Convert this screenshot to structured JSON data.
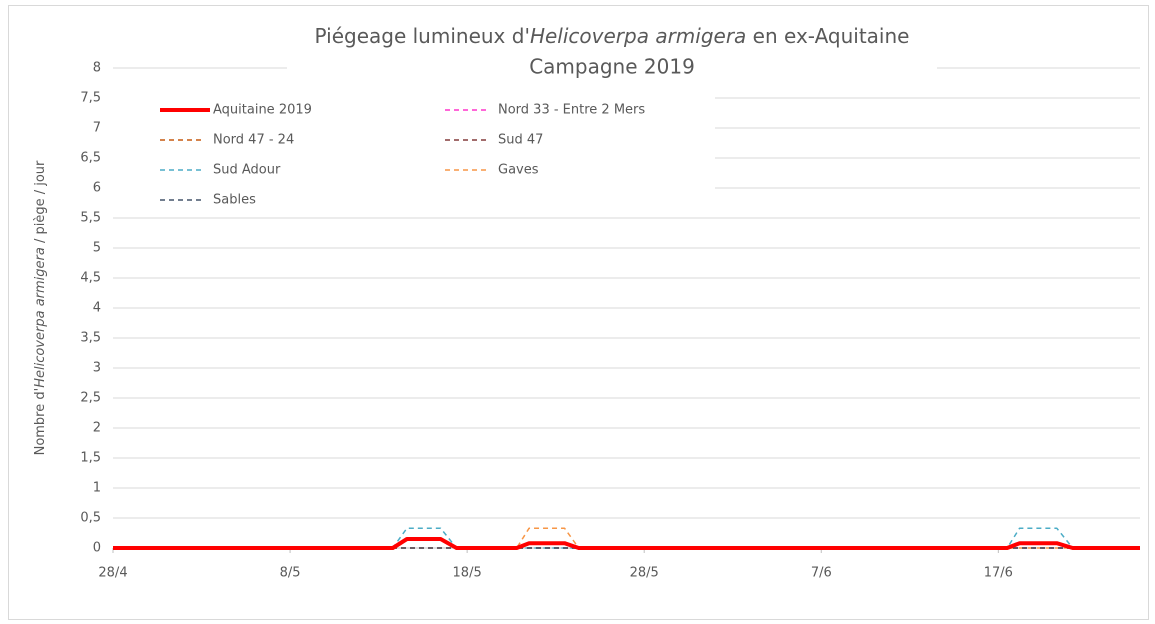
{
  "chart_data": {
    "type": "line",
    "title": [
      "Piégeage lumineux d'",
      "Helicoverpa armigera",
      " en ex-Aquitaine"
    ],
    "subtitle": "Campagne 2019",
    "y_label": [
      "Nombre d'",
      "Helicoverpa armigera",
      " / piège / jour"
    ],
    "xlim": [
      0,
      58
    ],
    "xticks": [
      {
        "value": 0,
        "label": "28/4"
      },
      {
        "value": 10,
        "label": "8/5"
      },
      {
        "value": 20,
        "label": "18/5"
      },
      {
        "value": 30,
        "label": "28/5"
      },
      {
        "value": 40,
        "label": "7/6"
      },
      {
        "value": 50,
        "label": "17/6"
      }
    ],
    "ylim": [
      0,
      8
    ],
    "yticks": [
      0,
      {
        "value": 0.5,
        "label": "0,5"
      },
      1,
      {
        "value": 1.5,
        "label": "1,5"
      },
      2,
      {
        "value": 2.5,
        "label": "2,5"
      },
      3,
      {
        "value": 3.5,
        "label": "3,5"
      },
      4,
      {
        "value": 4.5,
        "label": "4,5"
      },
      5,
      {
        "value": 5.5,
        "label": "5,5"
      },
      6,
      {
        "value": 6.5,
        "label": "6,5"
      },
      7,
      {
        "value": 7.5,
        "label": "7,5"
      },
      8
    ],
    "grid": true,
    "legend": "top-left",
    "series": [
      {
        "name": "Aquitaine 2019",
        "color": "#ff0000",
        "style": "solid",
        "x": [
          0,
          15.8,
          16.6,
          18.5,
          19.4,
          22.8,
          23.5,
          25.5,
          26.3,
          50.5,
          51.2,
          53.3,
          54.2,
          58
        ],
        "values": [
          0,
          0,
          0.15,
          0.15,
          0,
          0,
          0.08,
          0.08,
          0,
          0,
          0.08,
          0.08,
          0,
          0
        ]
      },
      {
        "name": "Nord 33 - Entre 2 Mers",
        "color": "#ff33cc",
        "style": "dashed",
        "x": [
          0,
          58
        ],
        "values": [
          0,
          0
        ]
      },
      {
        "name": "Nord 47 - 24",
        "color": "#c55a11",
        "style": "dashed",
        "x": [
          0,
          58
        ],
        "values": [
          0,
          0
        ]
      },
      {
        "name": "Sud 47",
        "color": "#843c3c",
        "style": "dashed",
        "x": [
          0,
          58
        ],
        "values": [
          0,
          0
        ]
      },
      {
        "name": "Sud Adour",
        "color": "#4bacc6",
        "style": "dashed",
        "x": [
          0,
          15.8,
          16.6,
          18.5,
          19.4,
          50.5,
          51.2,
          53.3,
          54.2,
          58
        ],
        "values": [
          0,
          0,
          0.33,
          0.33,
          0,
          0,
          0.33,
          0.33,
          0,
          0
        ]
      },
      {
        "name": "Gaves",
        "color": "#f79646",
        "style": "dashed",
        "x": [
          0,
          22.8,
          23.5,
          25.5,
          26.3,
          58
        ],
        "values": [
          0,
          0,
          0.33,
          0.33,
          0,
          0
        ]
      },
      {
        "name": "Sables",
        "color": "#44546a",
        "style": "dashed",
        "x": [
          0,
          58
        ],
        "values": [
          0,
          0
        ]
      }
    ]
  }
}
